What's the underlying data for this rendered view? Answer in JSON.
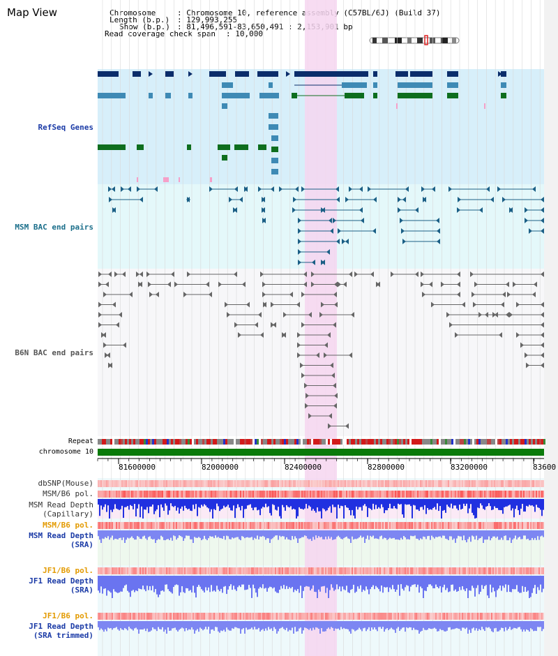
{
  "page_title": "Map View",
  "info": {
    "chromosome_label": "Chromosome",
    "chromosome_value": ": Chromosome 10, reference assembly (C57BL/6J) (Build 37)",
    "length_label": "Length (b.p.)",
    "length_value": ": 129,993,255",
    "show_label": "Show (b.p.)",
    "show_value": ": 81,496,591-83,650,491 : 2,153,901 bp",
    "coverage_label": "Read coverage check span",
    "coverage_value": ": 10,000"
  },
  "tracks": {
    "refseq": "RefSeq Genes",
    "msm_bac": "MSM BAC end pairs",
    "b6n_bac": "B6N BAC end pairs",
    "repeat": "Repeat",
    "chromosome": "chromosome 10",
    "dbsnp": "dbSNP(Mouse)",
    "msm_b6_pol": "MSM/B6 pol.",
    "msm_read_depth_cap_1": "MSM Read Depth",
    "msm_read_depth_cap_2": "(Capillary)",
    "msm_b6_pol_sra": "MSM/B6 pol.",
    "msm_read_depth_sra_1": "MSM Read Depth",
    "msm_read_depth_sra_2": "(SRA)",
    "jf1_b6_pol": "JF1/B6 pol.",
    "jf1_read_depth_1": "JF1 Read Depth",
    "jf1_read_depth_2": "(SRA)",
    "jf1_b6_pol_trim": "JF1/B6 pol.",
    "jf1_trim_1": "JF1 Read Depth",
    "jf1_trim_2": "(SRA trimmed)"
  },
  "ruler_ticks": [
    "81600000",
    "82000000",
    "82400000",
    "82800000",
    "83200000",
    "83600"
  ],
  "colors": {
    "highlight": "#f6d6f0",
    "refseq_bg": "#d7effa",
    "msm_bg": "#e4f8fa",
    "b6n_bg": "#f7f7f9",
    "gene_dark": "#0b2d6b",
    "gene_mid": "#3e8ab5",
    "gene_green": "#0e6e1e",
    "chromosome_bar": "#0a7a0a",
    "depth_blue": "#1f2fd8"
  }
}
